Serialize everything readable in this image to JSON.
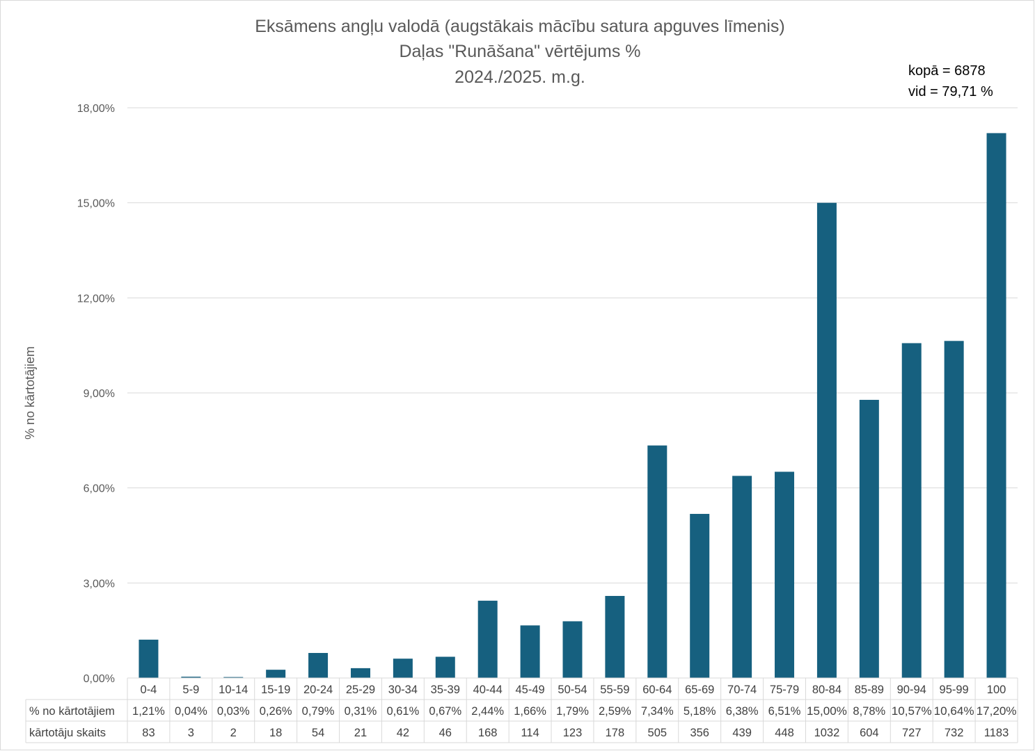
{
  "chart_data": {
    "type": "bar",
    "title": [
      "Eksāmens angļu valodā (augstākais mācību satura apguves līmenis)",
      "Daļas \"Runāšana\" vērtējums %",
      "2024./2025. m.g."
    ],
    "annotations": [
      "kopā = 6878",
      "vid = 79,71 %"
    ],
    "ylabel": "% no kārtotājiem",
    "xlabel": "",
    "ylim": [
      0,
      18
    ],
    "yticks": [
      0,
      3,
      6,
      9,
      12,
      15,
      18
    ],
    "ytick_labels": [
      "0,00%",
      "3,00%",
      "6,00%",
      "9,00%",
      "12,00%",
      "15,00%",
      "18,00%"
    ],
    "grid": true,
    "bar_color": "#16607F",
    "categories": [
      "0-4",
      "5-9",
      "10-14",
      "15-19",
      "20-24",
      "25-29",
      "30-34",
      "35-39",
      "40-44",
      "45-49",
      "50-54",
      "55-59",
      "60-64",
      "65-69",
      "70-74",
      "75-79",
      "80-84",
      "85-89",
      "90-94",
      "95-99",
      "100"
    ],
    "values": [
      1.21,
      0.04,
      0.03,
      0.26,
      0.79,
      0.31,
      0.61,
      0.67,
      2.44,
      1.66,
      1.79,
      2.59,
      7.34,
      5.18,
      6.38,
      6.51,
      15.0,
      8.78,
      10.57,
      10.64,
      17.2
    ],
    "data_table": {
      "rows": [
        {
          "label": "% no kārtotājiem",
          "cells": [
            "1,21%",
            "0,04%",
            "0,03%",
            "0,26%",
            "0,79%",
            "0,31%",
            "0,61%",
            "0,67%",
            "2,44%",
            "1,66%",
            "1,79%",
            "2,59%",
            "7,34%",
            "5,18%",
            "6,38%",
            "6,51%",
            "15,00%",
            "8,78%",
            "10,57%",
            "10,64%",
            "17,20%"
          ]
        },
        {
          "label": "kārtotāju skaits",
          "cells": [
            "83",
            "3",
            "2",
            "18",
            "54",
            "21",
            "42",
            "46",
            "168",
            "114",
            "123",
            "178",
            "505",
            "356",
            "439",
            "448",
            "1032",
            "604",
            "727",
            "732",
            "1183"
          ]
        }
      ]
    }
  }
}
